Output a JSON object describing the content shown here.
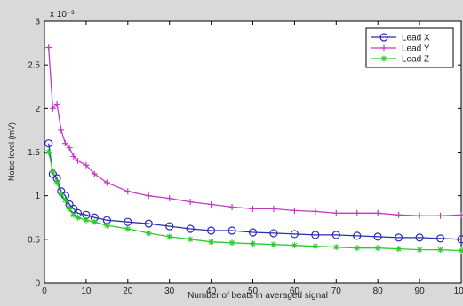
{
  "chart_data": {
    "type": "line",
    "title": "",
    "xlabel": "Number of beats in averaged signal",
    "ylabel": "Noise level (mV)",
    "y_exponent_label": "x 10⁻³",
    "xlim": [
      0,
      100
    ],
    "ylim": [
      0,
      3
    ],
    "xticks": [
      "0",
      "10",
      "20",
      "30",
      "40",
      "50",
      "60",
      "70",
      "80",
      "90",
      "100"
    ],
    "yticks": [
      "0",
      "0.5",
      "1",
      "1.5",
      "2",
      "2.5",
      "3"
    ],
    "grid": false,
    "legend_position": "top-right",
    "x": [
      1,
      2,
      3,
      4,
      5,
      6,
      7,
      8,
      10,
      12,
      15,
      20,
      25,
      30,
      35,
      40,
      45,
      50,
      55,
      60,
      65,
      70,
      75,
      80,
      85,
      90,
      95,
      100
    ],
    "series": [
      {
        "name": "Lead X",
        "color": "#2b2bb5",
        "marker": "circle",
        "values": [
          1.6,
          1.25,
          1.2,
          1.05,
          1.0,
          0.9,
          0.85,
          0.8,
          0.78,
          0.75,
          0.72,
          0.7,
          0.68,
          0.65,
          0.62,
          0.6,
          0.6,
          0.58,
          0.57,
          0.56,
          0.55,
          0.55,
          0.54,
          0.53,
          0.52,
          0.52,
          0.51,
          0.5
        ]
      },
      {
        "name": "Lead Y",
        "color": "#c23bc2",
        "marker": "plus",
        "values": [
          2.7,
          2.0,
          2.05,
          1.75,
          1.6,
          1.55,
          1.45,
          1.4,
          1.35,
          1.25,
          1.15,
          1.05,
          1.0,
          0.97,
          0.93,
          0.9,
          0.87,
          0.85,
          0.85,
          0.83,
          0.82,
          0.8,
          0.8,
          0.8,
          0.78,
          0.77,
          0.77,
          0.78
        ]
      },
      {
        "name": "Lead Z",
        "color": "#2bcc2b",
        "marker": "star",
        "values": [
          1.5,
          1.28,
          1.15,
          1.02,
          0.95,
          0.85,
          0.78,
          0.75,
          0.72,
          0.7,
          0.66,
          0.62,
          0.57,
          0.53,
          0.5,
          0.47,
          0.46,
          0.45,
          0.44,
          0.43,
          0.42,
          0.41,
          0.4,
          0.4,
          0.39,
          0.38,
          0.38,
          0.37
        ]
      }
    ]
  }
}
